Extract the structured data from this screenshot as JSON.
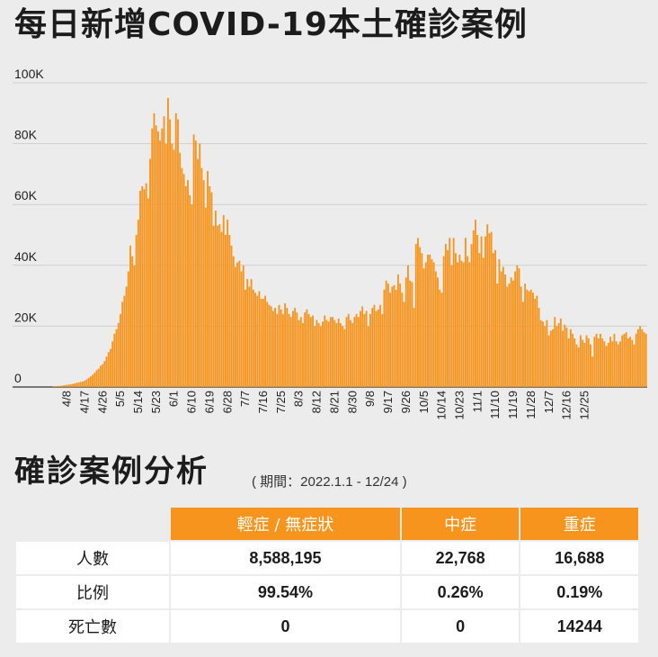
{
  "title": "每日新增COVID-19本土確診案例",
  "chart_data": {
    "type": "bar",
    "color": "#f7941d",
    "ylim": [
      0,
      100000
    ],
    "yticks": [
      0,
      20000,
      40000,
      60000,
      80000,
      100000
    ],
    "ytick_labels": [
      "0",
      "20K",
      "40K",
      "60K",
      "80K",
      "100K"
    ],
    "xtick_labels": [
      "4/8",
      "4/17",
      "4/26",
      "5/5",
      "5/14",
      "5/23",
      "6/1",
      "6/10",
      "6/19",
      "6/28",
      "7/7",
      "7/16",
      "7/25",
      "8/3",
      "8/12",
      "8/21",
      "8/30",
      "9/8",
      "9/17",
      "9/26",
      "10/5",
      "10/14",
      "10/23",
      "11/1",
      "11/10",
      "11/19",
      "11/28",
      "12/7",
      "12/16",
      "12/25"
    ],
    "grid": true,
    "start_date": "4/1",
    "values": [
      100,
      200,
      300,
      350,
      400,
      500,
      600,
      700,
      800,
      900,
      1000,
      1200,
      1400,
      1500,
      1700,
      1800,
      2100,
      2500,
      3000,
      3500,
      4000,
      4700,
      5500,
      6000,
      7000,
      7500,
      8500,
      10000,
      11500,
      12500,
      15000,
      17500,
      19000,
      21000,
      24000,
      28000,
      30000,
      33000,
      38000,
      46500,
      43000,
      40000,
      50000,
      55000,
      64500,
      66000,
      65000,
      67000,
      62000,
      75000,
      85000,
      90000,
      86000,
      84000,
      81000,
      85000,
      89000,
      80000,
      95000,
      88000,
      80000,
      78000,
      90000,
      88000,
      77000,
      72000,
      70000,
      66000,
      68000,
      63000,
      60000,
      83000,
      81000,
      75000,
      80000,
      72000,
      68000,
      59000,
      71000,
      66000,
      64000,
      53000,
      58000,
      53000,
      53500,
      51000,
      56500,
      50000,
      55000,
      50000,
      46500,
      43000,
      39500,
      41000,
      41500,
      38000,
      40000,
      32000,
      35500,
      33000,
      35500,
      32000,
      31000,
      30000,
      31500,
      29000,
      29000,
      30000,
      28000,
      27000,
      26500,
      25000,
      26000,
      24000,
      27000,
      25500,
      24000,
      27500,
      26000,
      24000,
      23000,
      25000,
      26000,
      24500,
      22000,
      23000,
      21000,
      24500,
      25500,
      24000,
      23000,
      23500,
      20000,
      22000,
      21000,
      20000,
      21500,
      23500,
      22000,
      21500,
      23000,
      23000,
      22000,
      21000,
      22500,
      21000,
      20000,
      19000,
      23000,
      24000,
      22000,
      21000,
      23000,
      24000,
      23000,
      25000,
      26500,
      24000,
      25000,
      20000,
      24000,
      26000,
      27000,
      25000,
      25500,
      27000,
      24000,
      32000,
      35000,
      34000,
      31000,
      33000,
      33500,
      32000,
      37000,
      34000,
      31000,
      28000,
      36000,
      40000,
      35000,
      34500,
      26000,
      47000,
      49000,
      46000,
      44000,
      39000,
      41000,
      43500,
      43500,
      42000,
      41000,
      38000,
      36000,
      32000,
      31000,
      43000,
      47000,
      45000,
      49000,
      40000,
      49000,
      44000,
      41000,
      43500,
      41500,
      41000,
      49000,
      43000,
      41000,
      47000,
      51500,
      55000,
      50000,
      44000,
      49500,
      42500,
      49500,
      53500,
      50500,
      51000,
      44000,
      45000,
      34000,
      42000,
      38000,
      39500,
      37000,
      33000,
      34000,
      36000,
      35000,
      38000,
      40000,
      39000,
      33000,
      28000,
      34000,
      32000,
      31500,
      32000,
      31000,
      29000,
      30000,
      26000,
      22000,
      21500,
      20000,
      22000,
      17000,
      18500,
      19000,
      23000,
      20000,
      21000,
      22500,
      18500,
      20500,
      19500,
      16000,
      19000,
      17500,
      16000,
      14000,
      13000,
      17000,
      15500,
      14500,
      17000,
      16000,
      14000,
      10000,
      16500,
      17500,
      16000,
      17500,
      16000,
      15000,
      13500,
      14500,
      16500,
      15000,
      17500,
      15000,
      14000,
      15000,
      17000,
      17500,
      18000,
      16000,
      16500,
      15500,
      14000,
      17500,
      19000,
      20000,
      19000,
      18000,
      17500
    ]
  },
  "analysis": {
    "title": "確診案例分析",
    "subtitle": "( 期間：2022.1.1 - 12/24 )",
    "headers": [
      "輕症 / 無症狀",
      "中症",
      "重症"
    ],
    "rows": [
      {
        "label": "人數",
        "values": [
          "8,588,195",
          "22,768",
          "16,688"
        ]
      },
      {
        "label": "比例",
        "values": [
          "99.54%",
          "0.26%",
          "0.19%"
        ]
      },
      {
        "label": "死亡數",
        "values": [
          "0",
          "0",
          "14244"
        ]
      }
    ]
  }
}
